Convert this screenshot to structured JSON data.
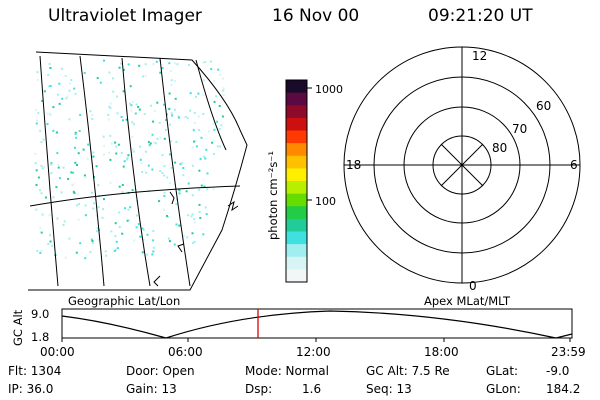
{
  "header": {
    "title": "Ultraviolet Imager",
    "date": "16 Nov 00",
    "time": "09:21:20 UT"
  },
  "colorbar": {
    "label": "photon cm⁻²s⁻¹",
    "ticks": [
      "1000",
      "100"
    ],
    "colors": [
      "#1a0a2a",
      "#5a0a40",
      "#8e0a2a",
      "#cc1010",
      "#ff3a00",
      "#ff8a00",
      "#ffc000",
      "#ffee00",
      "#b8ee00",
      "#66dd00",
      "#22cc44",
      "#22cc99",
      "#40e0e0",
      "#a0eef0",
      "#d8f4f4",
      "#f2f6f6"
    ]
  },
  "geo_panel": {
    "label": "Geographic Lat/Lon"
  },
  "polar_panel": {
    "label": "Apex MLat/MLT",
    "mlt_labels": {
      "top": "12",
      "left": "18",
      "right": "6",
      "bottom": "0"
    },
    "lat_labels": [
      "60",
      "70",
      "80"
    ]
  },
  "altitude_plot": {
    "ylabel": "GC Alt",
    "ytick_top": "9.0",
    "ytick_bottom": "1.8",
    "xticks": [
      "00:00",
      "06:00",
      "12:00",
      "18:00",
      "23:59"
    ],
    "marker_color": "#dd0000"
  },
  "footer": {
    "flt": "Flt: 1304",
    "ip": "IP: 36.0",
    "door": "Door: Open",
    "gain": "Gain: 13",
    "mode": "Mode: Normal",
    "dsp_label": "Dsp:",
    "dsp_value": "1.6",
    "gcalt": "GC Alt: 7.5 Re",
    "seq": "Seq: 13",
    "glat_label": "GLat:",
    "glat_value": "-9.0",
    "glon_label": "GLon:",
    "glon_value": "184.2"
  }
}
